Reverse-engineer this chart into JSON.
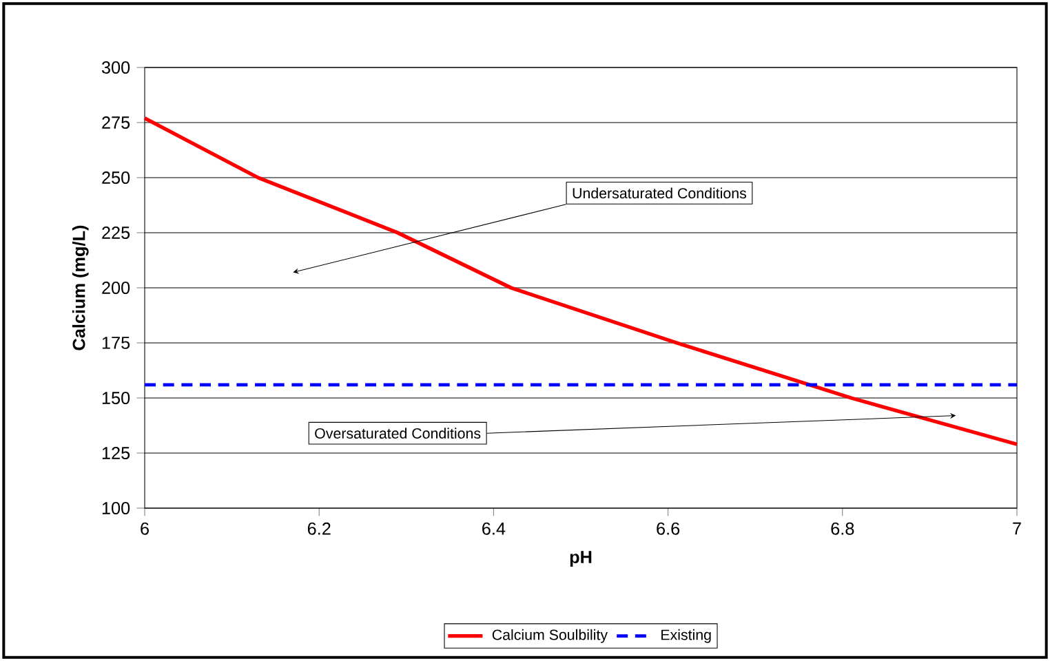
{
  "chart_data": {
    "type": "line",
    "xlabel": "pH",
    "ylabel": "Calcium (mg/L)",
    "xlim": [
      6,
      7
    ],
    "ylim": [
      100,
      300
    ],
    "xticks": [
      6,
      {
        "value": 6.2,
        "label": "6.2"
      },
      {
        "value": 6.4,
        "label": "6.4"
      },
      {
        "value": 6.6,
        "label": "6.6"
      },
      {
        "value": 6.8,
        "label": "6.8"
      },
      7
    ],
    "yticks": [
      100,
      125,
      150,
      175,
      200,
      225,
      250,
      275,
      300
    ],
    "grid": "y",
    "legend": "bottom",
    "series": [
      {
        "name": "Calcium Soulbility",
        "color": "#ff0000",
        "line_style": "solid",
        "x": [
          6,
          6.13,
          6.29,
          6.42,
          6.61,
          6.81,
          7
        ],
        "values": [
          277,
          250,
          225,
          200,
          175,
          150,
          129
        ]
      },
      {
        "name": "Existing",
        "color": "#0000ff",
        "line_style": "dashed",
        "x": [
          6,
          7
        ],
        "values": [
          156,
          156
        ]
      }
    ],
    "annotations": [
      "Undersaturated Conditions",
      "Oversaturated Conditions"
    ]
  }
}
